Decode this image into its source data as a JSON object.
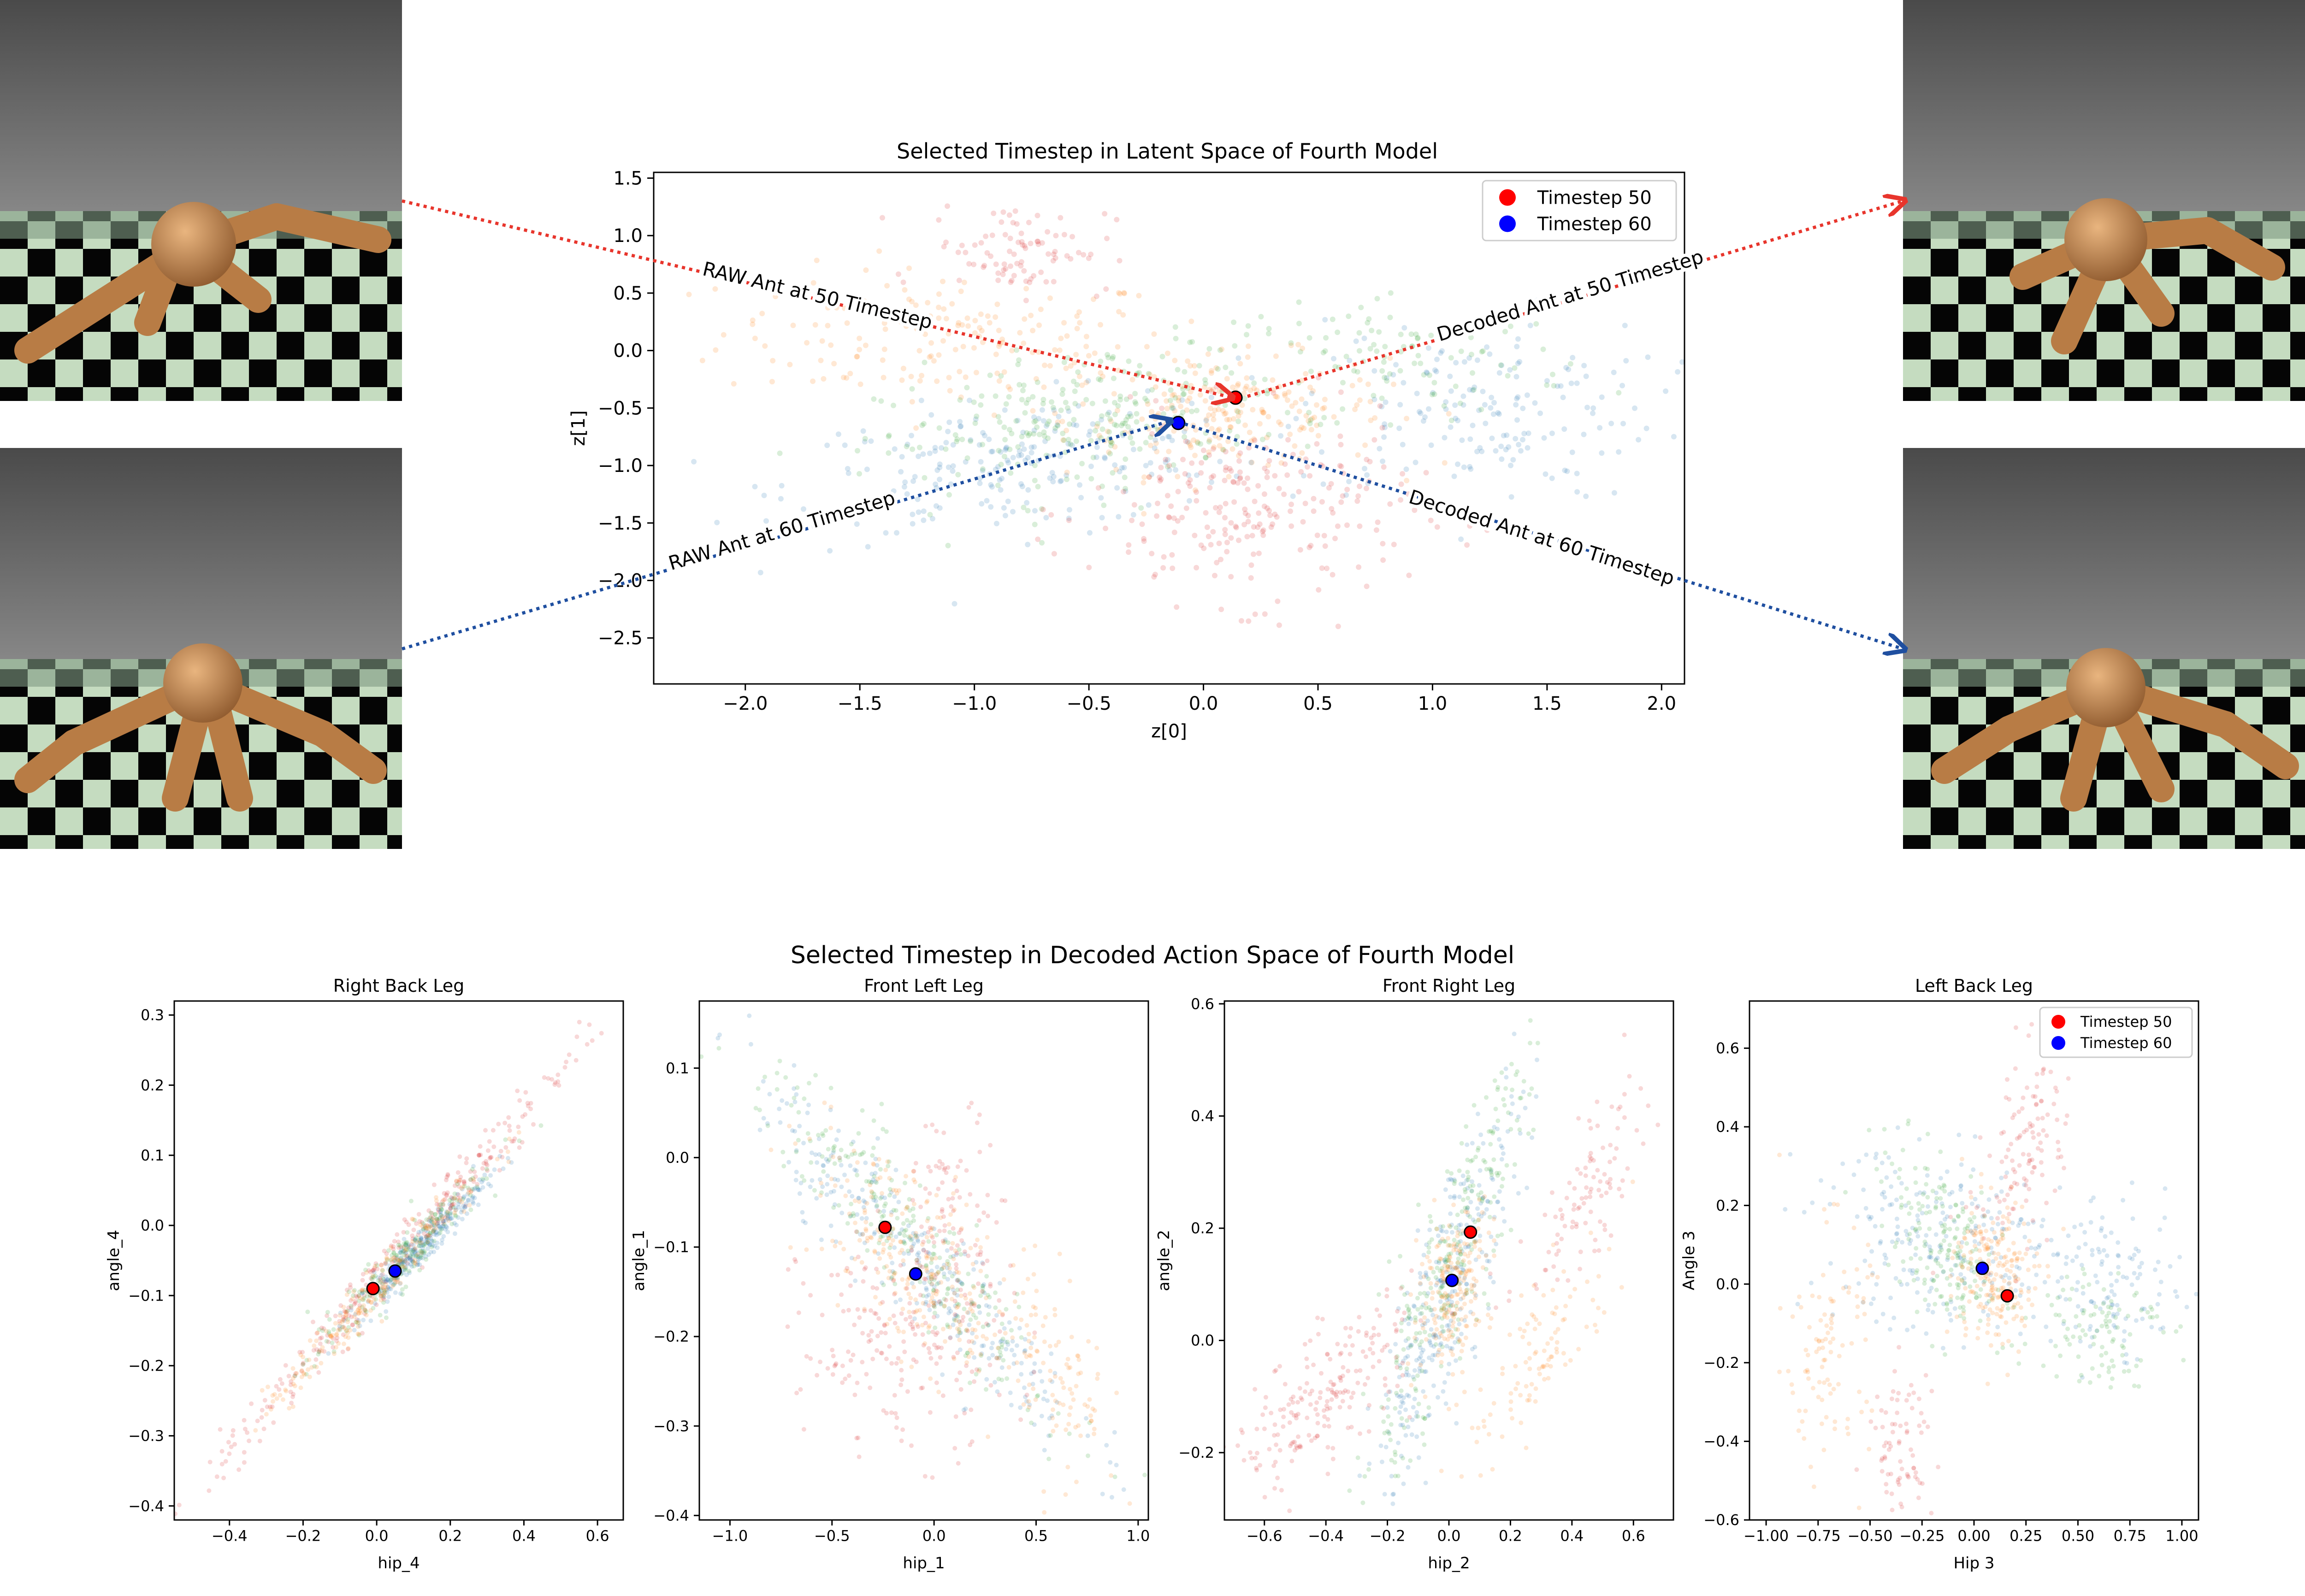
{
  "figure": {
    "decoded_suptitle": "Selected Timestep in Decoded Action Space of Fourth Model"
  },
  "annotations": {
    "raw_50": "RAW Ant at 50 Timestep",
    "raw_60": "RAW Ant at 60 Timestep",
    "decoded_50": "Decoded Ant at 50 Timestep",
    "decoded_60": "Decoded Ant at 60 Timestep"
  },
  "images": [
    {
      "name": "raw-ant-50-render",
      "icon": "ant-robot-render"
    },
    {
      "name": "raw-ant-60-render",
      "icon": "ant-robot-render"
    },
    {
      "name": "decoded-ant-50-render",
      "icon": "ant-robot-render"
    },
    {
      "name": "decoded-ant-60-render",
      "icon": "ant-robot-render"
    }
  ],
  "colors": {
    "timestep50": "#ff0000",
    "timestep60": "#0000ff",
    "arrow50": "#e8352c",
    "arrow60": "#1f4fa0",
    "cluster_blue": "#1f77b4",
    "cluster_orange": "#ff7f0e",
    "cluster_green": "#2ca02c",
    "cluster_red": "#d62728",
    "cluster_purple": "#9467bd"
  },
  "chart_data": [
    {
      "id": "latent",
      "type": "scatter",
      "title": "Selected Timestep in Latent Space of Fourth Model",
      "xlabel": "z[0]",
      "ylabel": "z[1]",
      "xlim": [
        -2.4,
        2.1
      ],
      "ylim": [
        -2.9,
        1.55
      ],
      "xticks": [
        -2.0,
        -1.5,
        -1.0,
        -0.5,
        0.0,
        0.5,
        1.0,
        1.5,
        2.0
      ],
      "yticks": [
        -2.5,
        -2.0,
        -1.5,
        -1.0,
        -0.5,
        0.0,
        0.5,
        1.0,
        1.5
      ],
      "legend": {
        "position": "top-right",
        "entries": [
          "Timestep 50",
          "Timestep 60"
        ]
      },
      "clusters": [
        {
          "color": "orange",
          "cx": -1.1,
          "cy": 0.1,
          "sx": 0.5,
          "sy": 0.3,
          "corr": -0.1,
          "n": 180
        },
        {
          "color": "orange",
          "cx": 0.1,
          "cy": -0.55,
          "sx": 0.35,
          "sy": 0.25,
          "corr": 0.1,
          "n": 220
        },
        {
          "color": "blue",
          "cx": -0.8,
          "cy": -1.0,
          "sx": 0.5,
          "sy": 0.3,
          "corr": 0.3,
          "n": 220
        },
        {
          "color": "blue",
          "cx": 1.2,
          "cy": -0.5,
          "sx": 0.4,
          "sy": 0.4,
          "corr": 0.0,
          "n": 180
        },
        {
          "color": "green",
          "cx": -0.5,
          "cy": -0.6,
          "sx": 0.45,
          "sy": 0.35,
          "corr": 0.4,
          "n": 260
        },
        {
          "color": "green",
          "cx": 0.9,
          "cy": -0.1,
          "sx": 0.35,
          "sy": 0.25,
          "corr": 0.0,
          "n": 100
        },
        {
          "color": "red",
          "cx": 0.2,
          "cy": -1.4,
          "sx": 0.35,
          "sy": 0.4,
          "corr": 0.0,
          "n": 240
        },
        {
          "color": "red",
          "cx": -0.8,
          "cy": 0.9,
          "sx": 0.2,
          "sy": 0.2,
          "corr": 0.0,
          "n": 90
        }
      ],
      "highlights": [
        {
          "label": "Timestep 50",
          "x": 0.14,
          "y": -0.41
        },
        {
          "label": "Timestep 60",
          "x": -0.11,
          "y": -0.63
        }
      ]
    },
    {
      "id": "right-back-leg",
      "type": "scatter",
      "title": "Right Back Leg",
      "xlabel": "hip_4",
      "ylabel": "angle_4",
      "xlim": [
        -0.55,
        0.67
      ],
      "ylim": [
        -0.42,
        0.32
      ],
      "xticks": [
        -0.4,
        -0.2,
        0.0,
        0.2,
        0.4,
        0.6
      ],
      "yticks": [
        -0.4,
        -0.3,
        -0.2,
        -0.1,
        0.0,
        0.1,
        0.2,
        0.3
      ],
      "clusters": [
        {
          "color": "red",
          "cx": 0.05,
          "cy": -0.05,
          "sx": 0.25,
          "sy": 0.15,
          "corr": 0.99,
          "n": 320
        },
        {
          "color": "blue",
          "cx": 0.12,
          "cy": -0.03,
          "sx": 0.09,
          "sy": 0.05,
          "corr": 0.96,
          "n": 280
        },
        {
          "color": "green",
          "cx": 0.05,
          "cy": -0.06,
          "sx": 0.12,
          "sy": 0.07,
          "corr": 0.96,
          "n": 200
        },
        {
          "color": "orange",
          "cx": 0.0,
          "cy": -0.09,
          "sx": 0.15,
          "sy": 0.09,
          "corr": 0.98,
          "n": 200
        }
      ],
      "highlights": [
        {
          "label": "Timestep 50",
          "x": -0.01,
          "y": -0.09
        },
        {
          "label": "Timestep 60",
          "x": 0.05,
          "y": -0.065
        }
      ]
    },
    {
      "id": "front-left-leg",
      "type": "scatter",
      "title": "Front Left Leg",
      "xlabel": "hip_1",
      "ylabel": "angle_1",
      "xlim": [
        -1.15,
        1.05
      ],
      "ylim": [
        -0.405,
        0.175
      ],
      "xticks": [
        -1.0,
        -0.5,
        0.0,
        0.5,
        1.0
      ],
      "yticks": [
        -0.4,
        -0.3,
        -0.2,
        -0.1,
        0.0,
        0.1
      ],
      "clusters": [
        {
          "color": "blue",
          "cx": -0.1,
          "cy": -0.11,
          "sx": 0.4,
          "sy": 0.1,
          "corr": -0.93,
          "n": 300
        },
        {
          "color": "green",
          "cx": -0.1,
          "cy": -0.1,
          "sx": 0.38,
          "sy": 0.1,
          "corr": -0.93,
          "n": 250
        },
        {
          "color": "orange",
          "cx": -0.1,
          "cy": -0.12,
          "sx": 0.25,
          "sy": 0.07,
          "corr": -0.7,
          "n": 250
        },
        {
          "color": "orange",
          "cx": 0.6,
          "cy": -0.24,
          "sx": 0.15,
          "sy": 0.06,
          "corr": -0.5,
          "n": 100
        },
        {
          "color": "red",
          "cx": -0.15,
          "cy": -0.21,
          "sx": 0.25,
          "sy": 0.06,
          "corr": -0.1,
          "n": 200
        },
        {
          "color": "red",
          "cx": 0.1,
          "cy": -0.05,
          "sx": 0.12,
          "sy": 0.05,
          "corr": 0.0,
          "n": 80
        }
      ],
      "highlights": [
        {
          "label": "Timestep 50",
          "x": -0.24,
          "y": -0.078
        },
        {
          "label": "Timestep 60",
          "x": -0.09,
          "y": -0.13
        }
      ]
    },
    {
      "id": "front-right-leg",
      "type": "scatter",
      "title": "Front Right Leg",
      "xlabel": "hip_2",
      "ylabel": "angle_2",
      "xlim": [
        -0.73,
        0.73
      ],
      "ylim": [
        -0.32,
        0.605
      ],
      "xticks": [
        -0.6,
        -0.4,
        -0.2,
        0.0,
        0.2,
        0.4,
        0.6
      ],
      "yticks": [
        -0.2,
        0.0,
        0.2,
        0.4,
        0.6
      ],
      "clusters": [
        {
          "color": "blue",
          "cx": 0.0,
          "cy": 0.1,
          "sx": 0.12,
          "sy": 0.18,
          "corr": 0.85,
          "n": 300
        },
        {
          "color": "green",
          "cx": -0.02,
          "cy": 0.1,
          "sx": 0.14,
          "sy": 0.2,
          "corr": 0.9,
          "n": 260
        },
        {
          "color": "orange",
          "cx": 0.02,
          "cy": 0.1,
          "sx": 0.06,
          "sy": 0.07,
          "corr": 0.4,
          "n": 200
        },
        {
          "color": "orange",
          "cx": 0.3,
          "cy": -0.02,
          "sx": 0.12,
          "sy": 0.1,
          "corr": 0.8,
          "n": 100
        },
        {
          "color": "red",
          "cx": -0.4,
          "cy": -0.1,
          "sx": 0.15,
          "sy": 0.08,
          "corr": 0.7,
          "n": 200
        },
        {
          "color": "red",
          "cx": 0.45,
          "cy": 0.25,
          "sx": 0.1,
          "sy": 0.1,
          "corr": 0.8,
          "n": 100
        }
      ],
      "highlights": [
        {
          "label": "Timestep 50",
          "x": 0.07,
          "y": 0.193
        },
        {
          "label": "Timestep 60",
          "x": 0.01,
          "y": 0.107
        }
      ]
    },
    {
      "id": "left-back-leg",
      "type": "scatter",
      "title": "Left Back Leg",
      "xlabel": "Hip 3",
      "ylabel": "Angle 3",
      "xlim": [
        -1.08,
        1.08
      ],
      "ylim": [
        -0.6,
        0.72
      ],
      "xticks": [
        -1.0,
        -0.75,
        -0.5,
        -0.25,
        0.0,
        0.25,
        0.5,
        0.75,
        1.0
      ],
      "yticks": [
        -0.6,
        -0.4,
        -0.2,
        0.0,
        0.2,
        0.4,
        0.6
      ],
      "legend": {
        "position": "top-right",
        "entries": [
          "Timestep 50",
          "Timestep 60"
        ]
      },
      "clusters": [
        {
          "color": "blue",
          "cx": -0.1,
          "cy": 0.1,
          "sx": 0.35,
          "sy": 0.12,
          "corr": -0.2,
          "n": 250
        },
        {
          "color": "blue",
          "cx": 0.7,
          "cy": 0.0,
          "sx": 0.15,
          "sy": 0.1,
          "corr": 0.0,
          "n": 100
        },
        {
          "color": "green",
          "cx": -0.15,
          "cy": 0.1,
          "sx": 0.15,
          "sy": 0.12,
          "corr": -0.6,
          "n": 180
        },
        {
          "color": "green",
          "cx": 0.6,
          "cy": -0.1,
          "sx": 0.15,
          "sy": 0.08,
          "corr": 0.0,
          "n": 100
        },
        {
          "color": "orange",
          "cx": 0.1,
          "cy": 0.02,
          "sx": 0.1,
          "sy": 0.1,
          "corr": 0.0,
          "n": 200
        },
        {
          "color": "orange",
          "cx": -0.7,
          "cy": -0.15,
          "sx": 0.1,
          "sy": 0.15,
          "corr": 0.0,
          "n": 100
        },
        {
          "color": "red",
          "cx": 0.25,
          "cy": 0.35,
          "sx": 0.12,
          "sy": 0.15,
          "corr": 0.5,
          "n": 120
        },
        {
          "color": "red",
          "cx": -0.35,
          "cy": -0.4,
          "sx": 0.08,
          "sy": 0.1,
          "corr": 0.0,
          "n": 80
        }
      ],
      "highlights": [
        {
          "label": "Timestep 50",
          "x": 0.16,
          "y": -0.03
        },
        {
          "label": "Timestep 60",
          "x": 0.04,
          "y": 0.04
        }
      ]
    }
  ]
}
